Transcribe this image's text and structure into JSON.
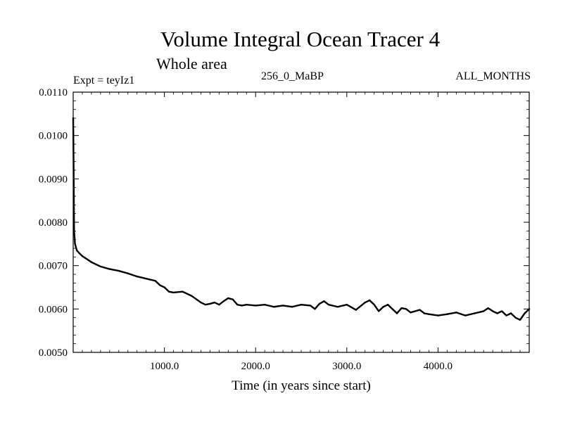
{
  "labels": {
    "title": "Volume Integral Ocean Tracer 4",
    "subtitle": "Whole area",
    "expt": "Expt = teyIz1",
    "period": "256_0_MaBP",
    "months": "ALL_MONTHS"
  },
  "chart_data": {
    "type": "line",
    "title": "Volume Integral Ocean Tracer 4",
    "subtitle": "Whole area",
    "xlabel": "Time (in years since start)",
    "ylabel": "",
    "xlim": [
      0,
      5000
    ],
    "ylim": [
      0.005,
      0.011
    ],
    "x_ticks": [
      1000,
      2000,
      3000,
      4000
    ],
    "x_tick_labels": [
      "1000.0",
      "2000.0",
      "3000.0",
      "4000.0"
    ],
    "y_ticks": [
      0.005,
      0.006,
      0.007,
      0.008,
      0.009,
      0.01,
      0.011
    ],
    "y_tick_labels": [
      "0.0050",
      "0.0060",
      "0.0070",
      "0.0080",
      "0.0090",
      "0.0100",
      "0.0110"
    ],
    "grid": false,
    "color": "#000000",
    "series": [
      {
        "x": [
          0,
          5,
          10,
          20,
          40,
          70,
          100,
          150,
          200,
          300,
          400,
          500,
          600,
          700,
          800,
          900,
          950,
          1000,
          1050,
          1100,
          1200,
          1300,
          1400,
          1450,
          1500,
          1550,
          1600,
          1650,
          1700,
          1750,
          1800,
          1850,
          1900,
          2000,
          2100,
          2200,
          2300,
          2400,
          2500,
          2600,
          2650,
          2700,
          2750,
          2800,
          2900,
          3000,
          3100,
          3200,
          3250,
          3300,
          3350,
          3400,
          3450,
          3500,
          3550,
          3600,
          3650,
          3700,
          3800,
          3850,
          3900,
          4000,
          4100,
          4200,
          4300,
          4400,
          4500,
          4550,
          4600,
          4650,
          4700,
          4750,
          4800,
          4850,
          4900,
          4950,
          5000
        ],
        "y": [
          0.0104,
          0.0092,
          0.0078,
          0.0075,
          0.00735,
          0.00728,
          0.00722,
          0.00715,
          0.00708,
          0.00698,
          0.00692,
          0.00688,
          0.00682,
          0.00675,
          0.0067,
          0.00665,
          0.00655,
          0.0065,
          0.0064,
          0.00638,
          0.0064,
          0.0063,
          0.00615,
          0.0061,
          0.00612,
          0.00615,
          0.0061,
          0.00618,
          0.00625,
          0.00622,
          0.0061,
          0.00608,
          0.0061,
          0.00608,
          0.0061,
          0.00605,
          0.00608,
          0.00605,
          0.0061,
          0.00608,
          0.006,
          0.00612,
          0.00618,
          0.0061,
          0.00605,
          0.0061,
          0.00598,
          0.00615,
          0.0062,
          0.0061,
          0.00595,
          0.00605,
          0.0061,
          0.006,
          0.0059,
          0.00602,
          0.006,
          0.00592,
          0.00598,
          0.0059,
          0.00588,
          0.00585,
          0.00588,
          0.00592,
          0.00585,
          0.0059,
          0.00595,
          0.00602,
          0.00595,
          0.0059,
          0.00595,
          0.00585,
          0.0059,
          0.0058,
          0.00575,
          0.0059,
          0.006
        ]
      }
    ]
  }
}
